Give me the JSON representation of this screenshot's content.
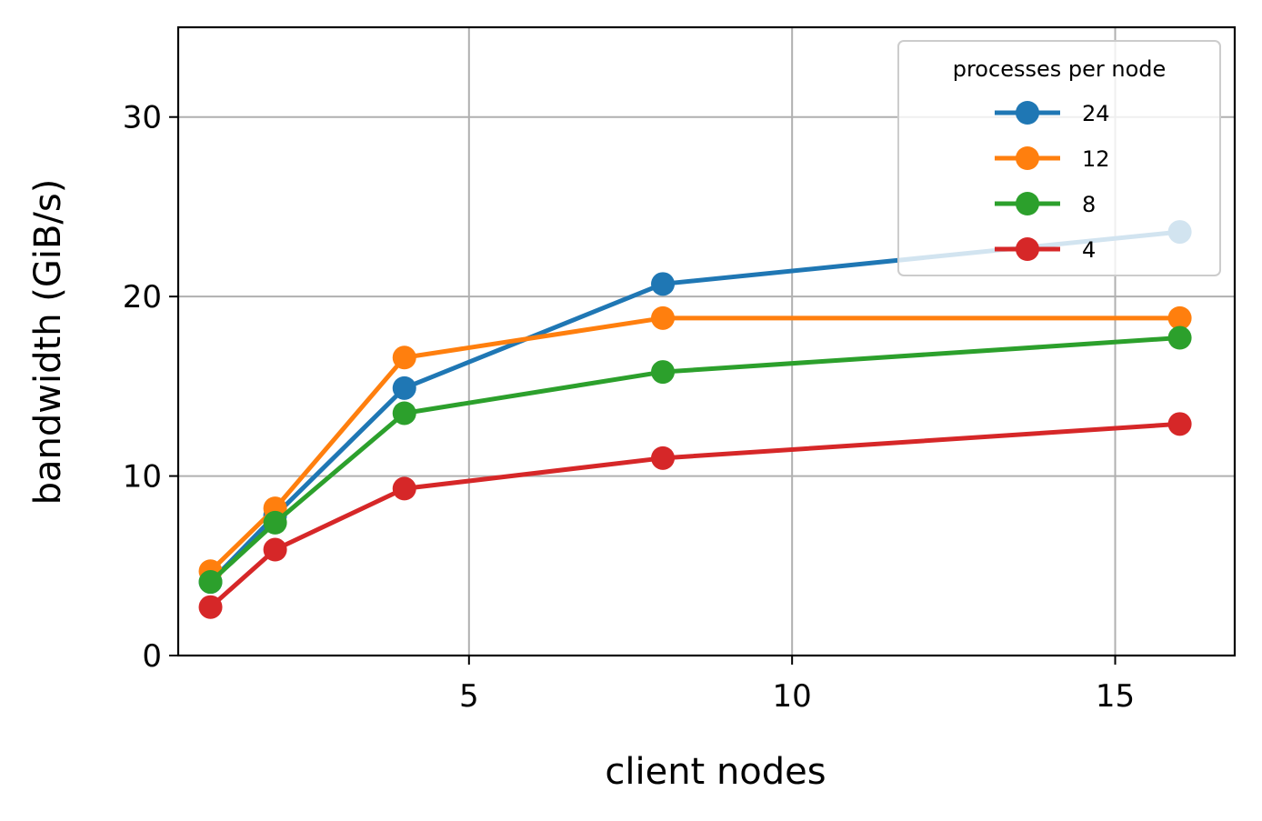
{
  "chart_data": {
    "type": "line",
    "xlabel": "client nodes",
    "ylabel": "bandwidth (GiB/s)",
    "xlim": [
      0.5,
      16.85
    ],
    "ylim": [
      0,
      35
    ],
    "xticks": [
      5,
      10,
      15
    ],
    "yticks": [
      0,
      10,
      20,
      30
    ],
    "grid": true,
    "legend": {
      "title": "processes per node",
      "placement": "top-right"
    },
    "x": [
      1,
      2,
      4,
      8,
      16
    ],
    "series": [
      {
        "name": "24",
        "color": "#1f77b4",
        "values": [
          4.1,
          7.8,
          14.9,
          20.7,
          23.6
        ]
      },
      {
        "name": "12",
        "color": "#ff7f0e",
        "values": [
          4.7,
          8.2,
          16.6,
          18.8,
          18.8
        ]
      },
      {
        "name": "8",
        "color": "#2ca02c",
        "values": [
          4.1,
          7.4,
          13.5,
          15.8,
          17.7
        ]
      },
      {
        "name": "4",
        "color": "#d62728",
        "values": [
          2.7,
          5.9,
          9.3,
          11.0,
          12.9
        ]
      }
    ]
  }
}
